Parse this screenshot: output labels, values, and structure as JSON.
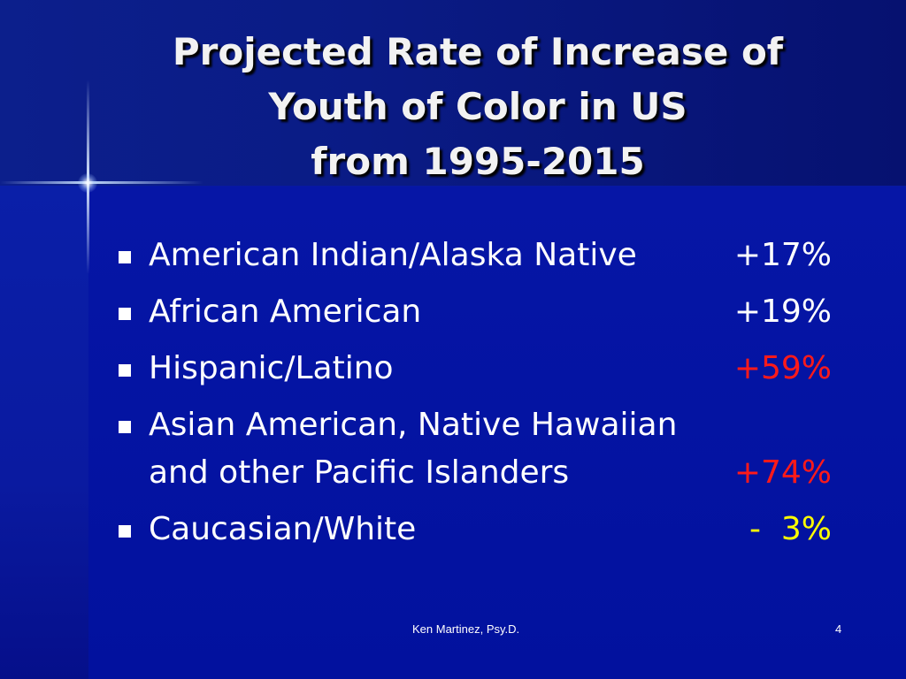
{
  "title": {
    "lines": [
      "Projected Rate of Increase of",
      "Youth of Color in US",
      "from 1995-2015"
    ]
  },
  "bullets": [
    {
      "lines": [
        "American Indian/Alaska Native"
      ],
      "value": "+17%",
      "value_color": "#ffffff"
    },
    {
      "lines": [
        "African American"
      ],
      "value": "+19%",
      "value_color": "#ffffff"
    },
    {
      "lines": [
        "Hispanic/Latino"
      ],
      "value": "+59%",
      "value_color": "#ff1a1a"
    },
    {
      "lines": [
        "Asian American, Native Hawaiian",
        "and other Pacific Islanders"
      ],
      "value": "+74%",
      "value_color": "#ff1a1a"
    },
    {
      "lines": [
        "Caucasian/White"
      ],
      "value": "-  3%",
      "value_color": "#ffff00"
    }
  ],
  "footer": {
    "author": "Ken Martinez, Psy.D.",
    "slide_number": "4"
  },
  "colors": {
    "background": "#02119e",
    "title_text": "#f2f2f2",
    "body_text": "#ffffff",
    "highlight_red": "#ff1a1a",
    "highlight_yellow": "#ffff00"
  }
}
